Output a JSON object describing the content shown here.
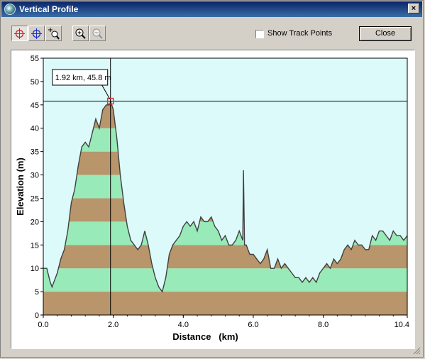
{
  "window": {
    "title": "Vertical Profile",
    "close_glyph": "×"
  },
  "toolbar": {
    "buttons": [
      {
        "name": "crosshair-red-tool",
        "icon": "crosshair-red-icon",
        "pressed": true
      },
      {
        "name": "crosshair-blue-tool",
        "icon": "crosshair-blue-icon",
        "pressed": false
      },
      {
        "name": "zoom-cursor-tool",
        "icon": "zoom-cursor-icon",
        "pressed": false
      },
      {
        "name": "zoom-in-tool",
        "icon": "zoom-in-icon",
        "pressed": false
      },
      {
        "name": "zoom-out-tool",
        "icon": "zoom-out-icon",
        "pressed": false
      }
    ],
    "show_track_points": {
      "label": "Show Track Points",
      "checked": false
    },
    "close_label": "Close"
  },
  "chart_data": {
    "type": "area",
    "xlabel": "Distance   (km)",
    "ylabel": "Elevation (m)",
    "xlim": [
      0,
      10.4
    ],
    "ylim": [
      0,
      55
    ],
    "xticks": [
      "0.0",
      "2.0",
      "4.0",
      "6.0",
      "8.0",
      "10.4"
    ],
    "yticks": [
      "0",
      "5",
      "10",
      "15",
      "20",
      "25",
      "30",
      "35",
      "40",
      "45",
      "50",
      "55"
    ],
    "band_size_m": 5,
    "colors": {
      "plot_bg": "#ddfafa",
      "band_brown": "#b8956a",
      "band_green": "#98ebb8",
      "line": "#404040",
      "marker": "#e03030"
    },
    "cursor": {
      "x_km": 1.92,
      "y_m": 45.8,
      "label": "1.92 km, 45.8 m"
    },
    "series": [
      {
        "x": [
          0.0,
          0.1,
          0.2,
          0.25,
          0.3,
          0.4,
          0.5,
          0.6,
          0.7,
          0.8,
          0.9,
          1.0,
          1.1,
          1.2,
          1.3,
          1.4,
          1.5,
          1.6,
          1.7,
          1.8,
          1.9,
          1.92,
          2.0,
          2.1,
          2.2,
          2.3,
          2.4,
          2.5,
          2.6,
          2.7,
          2.8,
          2.9,
          3.0,
          3.1,
          3.2,
          3.3,
          3.4,
          3.5,
          3.6,
          3.7,
          3.8,
          3.9,
          4.0,
          4.1,
          4.2,
          4.3,
          4.4,
          4.5,
          4.6,
          4.7,
          4.8,
          4.9,
          5.0,
          5.1,
          5.2,
          5.3,
          5.4,
          5.5,
          5.6,
          5.7,
          5.72,
          5.75,
          5.8,
          5.9,
          6.0,
          6.1,
          6.2,
          6.3,
          6.4,
          6.5,
          6.6,
          6.7,
          6.8,
          6.9,
          7.0,
          7.1,
          7.2,
          7.3,
          7.4,
          7.5,
          7.6,
          7.7,
          7.8,
          7.9,
          8.0,
          8.1,
          8.2,
          8.3,
          8.4,
          8.5,
          8.6,
          8.7,
          8.8,
          8.9,
          9.0,
          9.1,
          9.2,
          9.3,
          9.4,
          9.5,
          9.6,
          9.7,
          9.8,
          9.9,
          10.0,
          10.1,
          10.2,
          10.3,
          10.4
        ],
        "y": [
          10,
          10,
          7,
          6,
          7,
          9,
          12,
          14,
          18,
          24,
          27,
          32,
          36,
          37,
          36,
          39,
          42,
          40,
          44,
          45,
          45,
          45.8,
          44,
          38,
          30,
          24,
          19,
          16,
          15,
          14,
          15,
          18,
          15,
          11,
          8,
          6,
          5,
          8,
          13,
          15,
          16,
          17,
          19,
          20,
          19,
          20,
          18,
          21,
          20,
          20,
          21,
          19,
          18,
          16,
          17,
          15,
          15,
          16,
          18,
          16,
          31,
          15,
          15,
          13,
          13,
          12,
          11,
          12,
          14,
          10,
          10,
          12,
          10,
          11,
          10,
          9,
          8,
          8,
          7,
          8,
          7,
          8,
          7,
          9,
          10,
          11,
          10,
          12,
          11,
          12,
          14,
          15,
          14,
          16,
          15,
          15,
          14,
          14,
          17,
          16,
          18,
          18,
          17,
          16,
          18,
          17,
          17,
          16,
          17
        ]
      }
    ]
  }
}
